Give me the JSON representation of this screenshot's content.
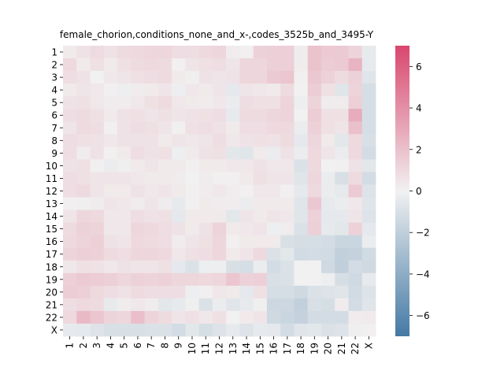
{
  "chart_data": {
    "type": "heatmap",
    "title": "female_chorion,conditions_none_and_x-,codes_3525b_and_3495-Y",
    "xlabel": "",
    "ylabel": "",
    "x_categories": [
      "1",
      "2",
      "3",
      "4",
      "5",
      "6",
      "7",
      "8",
      "9",
      "10",
      "11",
      "12",
      "13",
      "14",
      "15",
      "16",
      "17",
      "18",
      "19",
      "20",
      "21",
      "22",
      "X"
    ],
    "y_categories": [
      "1",
      "2",
      "3",
      "4",
      "5",
      "6",
      "7",
      "8",
      "9",
      "10",
      "11",
      "12",
      "13",
      "14",
      "15",
      "16",
      "17",
      "18",
      "19",
      "20",
      "21",
      "22",
      "X"
    ],
    "colorbar": {
      "min": -7,
      "max": 7,
      "ticks": [
        -6,
        -4,
        -2,
        0,
        2,
        4,
        6
      ],
      "tick_labels": [
        "−6",
        "−4",
        "−2",
        "0",
        "2",
        "4",
        "6"
      ],
      "low_color": "#4479a4",
      "mid_color": "#f1f1f1",
      "high_color": "#d9466e"
    },
    "values": [
      [
        0.3,
        0.6,
        0.9,
        0.6,
        0.9,
        1.0,
        1.1,
        1.1,
        0.8,
        0.8,
        1.0,
        1.1,
        0.2,
        0.1,
        1.3,
        1.4,
        1.4,
        0.2,
        1.9,
        1.6,
        1.6,
        1.2,
        -0.4
      ],
      [
        1.0,
        0.3,
        0.7,
        0.3,
        0.7,
        0.9,
        1.0,
        0.9,
        0.1,
        0.5,
        0.7,
        0.8,
        0.5,
        1.1,
        1.1,
        1.4,
        1.4,
        0.2,
        1.9,
        1.5,
        1.6,
        2.5,
        -0.4
      ],
      [
        0.8,
        0.6,
        0.0,
        0.4,
        0.5,
        0.7,
        0.8,
        0.9,
        0.3,
        -0.1,
        0.6,
        0.5,
        0.6,
        1.1,
        1.1,
        1.6,
        1.8,
        0.1,
        1.7,
        1.3,
        0.9,
        1.3,
        -0.7
      ],
      [
        0.3,
        0.5,
        0.4,
        0.1,
        -0.2,
        0.2,
        0.3,
        0.5,
        -0.2,
        0.4,
        0.3,
        0.5,
        -0.5,
        0.5,
        0.4,
        0.3,
        0.9,
        0.0,
        1.5,
        0.7,
        -0.7,
        1.2,
        -1.1
      ],
      [
        0.6,
        0.7,
        0.4,
        0.2,
        0.2,
        0.4,
        0.7,
        0.9,
        0.4,
        0.3,
        0.2,
        0.4,
        -0.3,
        0.8,
        0.7,
        0.7,
        1.2,
        -0.2,
        1.2,
        0.2,
        0.2,
        1.4,
        -1.1
      ],
      [
        0.8,
        0.9,
        0.7,
        0.3,
        0.6,
        0.7,
        0.5,
        0.7,
        0.5,
        0.6,
        0.7,
        0.8,
        -0.4,
        0.9,
        0.9,
        1.1,
        1.2,
        0.0,
        1.5,
        0.7,
        0.7,
        2.8,
        -1.1
      ],
      [
        0.5,
        0.9,
        0.8,
        0.1,
        0.6,
        0.8,
        0.7,
        0.5,
        0.1,
        0.7,
        0.8,
        0.6,
        0.3,
        0.8,
        0.8,
        1.0,
        1.0,
        -0.3,
        1.3,
        0.7,
        0.5,
        2.0,
        -1.1
      ],
      [
        0.8,
        0.7,
        0.6,
        0.4,
        0.6,
        0.6,
        0.6,
        0.3,
        0.5,
        0.4,
        0.5,
        0.8,
        0.4,
        0.6,
        0.7,
        0.6,
        0.9,
        -0.5,
        1.1,
        0.3,
        -0.6,
        1.0,
        -1.0
      ],
      [
        0.8,
        0.2,
        0.6,
        0.1,
        0.3,
        0.8,
        0.6,
        0.7,
        -0.2,
        0.3,
        0.6,
        0.7,
        -0.6,
        -0.7,
        0.3,
        -0.3,
        0.6,
        -0.3,
        1.0,
        0.5,
        -0.3,
        1.0,
        -1.2
      ],
      [
        0.6,
        0.7,
        0.1,
        -0.3,
        -0.1,
        0.3,
        0.5,
        0.3,
        0.3,
        0.1,
        0.3,
        0.3,
        0.4,
        0.4,
        0.6,
        0.4,
        0.4,
        -0.9,
        1.0,
        0.0,
        0.1,
        0.6,
        -0.6
      ],
      [
        0.8,
        0.7,
        0.5,
        0.5,
        0.5,
        0.4,
        0.3,
        0.3,
        0.2,
        0.0,
        0.2,
        0.1,
        0.1,
        0.3,
        0.7,
        0.5,
        0.5,
        -0.7,
        1.1,
        -0.3,
        -1.0,
        0.9,
        -1.2
      ],
      [
        0.8,
        1.0,
        0.5,
        0.3,
        0.3,
        0.6,
        0.4,
        0.5,
        0.3,
        0.1,
        0.2,
        0.4,
        0.2,
        0.1,
        0.4,
        0.4,
        0.1,
        -0.5,
        1.0,
        -0.3,
        -0.4,
        1.6,
        -0.8
      ],
      [
        0.1,
        -0.1,
        0.2,
        0.5,
        0.4,
        0.2,
        0.5,
        0.2,
        -0.4,
        0.1,
        0.3,
        0.2,
        0.2,
        -0.3,
        0.3,
        0.3,
        0.3,
        -0.7,
        1.7,
        -0.4,
        -0.3,
        0.4,
        -0.7
      ],
      [
        0.5,
        1.1,
        1.0,
        0.4,
        0.4,
        0.8,
        0.6,
        0.7,
        -0.5,
        0.3,
        0.3,
        0.3,
        -0.6,
        0.5,
        0.3,
        0.5,
        0.4,
        -0.7,
        1.3,
        -0.5,
        -0.5,
        0.5,
        -0.8
      ],
      [
        0.9,
        1.3,
        1.2,
        0.4,
        0.4,
        1.1,
        1.0,
        0.8,
        0.6,
        0.3,
        0.6,
        1.2,
        0.3,
        0.4,
        0.5,
        -0.2,
        0.2,
        -0.9,
        1.4,
        -0.4,
        -0.6,
        1.3,
        -0.5
      ],
      [
        1.0,
        1.2,
        1.4,
        0.6,
        0.5,
        1.0,
        0.9,
        0.8,
        0.2,
        0.5,
        0.7,
        1.1,
        0.1,
        0.3,
        0.3,
        0.3,
        -1.0,
        -1.1,
        -1.1,
        -1.2,
        -1.6,
        -1.6,
        -0.3
      ],
      [
        1.2,
        1.4,
        1.3,
        0.9,
        0.8,
        1.1,
        1.1,
        1.0,
        0.4,
        0.7,
        0.8,
        1.1,
        0.3,
        0.5,
        1.0,
        -0.9,
        -0.6,
        -1.3,
        -1.2,
        -1.3,
        -1.9,
        -1.8,
        -1.3
      ],
      [
        0.4,
        0.7,
        0.6,
        0.4,
        0.6,
        0.5,
        0.5,
        0.7,
        -0.5,
        -0.9,
        -0.2,
        -0.2,
        -1.0,
        -1.1,
        -0.3,
        -1.2,
        -0.9,
        0.0,
        0.0,
        -1.4,
        -2.0,
        -1.2,
        -1.4
      ],
      [
        1.4,
        1.6,
        1.5,
        1.4,
        1.1,
        1.3,
        1.2,
        1.3,
        1.1,
        1.1,
        1.0,
        1.1,
        1.8,
        1.3,
        1.4,
        -1.0,
        -0.9,
        0.0,
        0.0,
        -0.2,
        -1.1,
        -1.4,
        -0.4
      ],
      [
        1.5,
        1.4,
        1.0,
        0.8,
        0.6,
        0.9,
        0.8,
        0.8,
        0.8,
        -0.2,
        0.1,
        0.4,
        0.3,
        -0.5,
        0.7,
        -1.1,
        -1.1,
        -1.4,
        -0.9,
        -0.8,
        -0.7,
        -1.3,
        -0.8
      ],
      [
        0.8,
        1.0,
        0.9,
        -0.4,
        0.2,
        0.4,
        0.2,
        -0.6,
        -0.4,
        -0.1,
        -0.9,
        -0.3,
        -0.7,
        -0.4,
        -0.1,
        -1.5,
        -1.5,
        -1.9,
        -1.0,
        -1.1,
        0.2,
        -1.2,
        -0.7
      ],
      [
        1.0,
        2.3,
        1.8,
        1.2,
        1.1,
        2.1,
        1.2,
        0.9,
        0.5,
        0.7,
        0.4,
        0.7,
        0.0,
        0.3,
        0.5,
        -1.4,
        -1.6,
        -1.8,
        -1.2,
        -1.2,
        -1.2,
        0.2,
        0.3
      ],
      [
        -0.4,
        -0.5,
        -0.8,
        -1.0,
        -1.0,
        -1.0,
        -0.9,
        -0.9,
        -1.2,
        -0.6,
        -1.1,
        -0.8,
        -0.4,
        -0.8,
        -0.4,
        -0.5,
        -1.2,
        -0.7,
        -0.6,
        -0.9,
        -0.8,
        -0.1,
        0.1
      ]
    ]
  }
}
